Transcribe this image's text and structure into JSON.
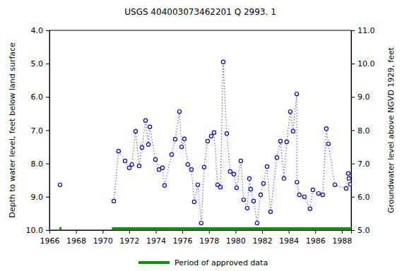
{
  "chart_data": {
    "type": "line",
    "title": "USGS 404003073462201 Q  2993. 1",
    "y_label": "Depth to water level, feet below land surface",
    "y2_label": "Groundwater level above NGVD 1929, feet",
    "xlim": [
      1966,
      1988.7
    ],
    "xticks": [
      1966,
      1968,
      1970,
      1972,
      1974,
      1976,
      1978,
      1980,
      1982,
      1984,
      1986,
      1988
    ],
    "ylim": [
      10.0,
      4.0
    ],
    "yticks": [
      {
        "value": 4,
        "label": "4.0"
      },
      {
        "value": 5,
        "label": "5.0"
      },
      {
        "value": 6,
        "label": "6.0"
      },
      {
        "value": 7,
        "label": "7.0"
      },
      {
        "value": 8,
        "label": "8.0"
      },
      {
        "value": 9,
        "label": "9.0"
      },
      {
        "value": 10,
        "label": "10.0"
      }
    ],
    "y2lim": [
      5.0,
      11.0
    ],
    "y2ticks": [
      {
        "value": 11,
        "label": "11.0"
      },
      {
        "value": 10,
        "label": "10.0"
      },
      {
        "value": 9,
        "label": "9.0"
      },
      {
        "value": 8,
        "label": "8.0"
      },
      {
        "value": 7,
        "label": "7.0"
      },
      {
        "value": 6,
        "label": "6.0"
      },
      {
        "value": 5,
        "label": "5.0"
      }
    ],
    "series": [
      {
        "color": "#0000ff",
        "marker": "circle",
        "line_style": "dotted",
        "x": [
          1966.8
        ],
        "values": [
          8.64
        ]
      },
      {
        "color": "#0000ff",
        "marker": "circle",
        "line_style": "dotted",
        "x": [
          1970.84,
          1971.2,
          1971.69,
          1972.0,
          1972.2,
          1972.48,
          1972.75,
          1972.96,
          1973.23,
          1973.44,
          1973.55,
          1973.97,
          1974.24,
          1974.5,
          1974.66,
          1975.19,
          1975.46,
          1975.78,
          1975.94,
          1976.15,
          1976.41,
          1976.68,
          1976.89,
          1977.16,
          1977.42,
          1977.64,
          1977.9,
          1978.17,
          1978.38,
          1978.65,
          1978.86,
          1979.07,
          1979.34,
          1979.6,
          1979.87,
          1980.08,
          1980.4,
          1980.61,
          1980.88,
          1981.04,
          1981.14,
          1981.36,
          1981.62,
          1981.89,
          1982.1,
          1982.37,
          1982.63,
          1983.11,
          1983.38,
          1983.64,
          1983.85,
          1984.12,
          1984.33,
          1984.6,
          1984.62,
          1984.8,
          1985.18,
          1985.6,
          1985.82,
          1986.24,
          1986.56,
          1986.83,
          1986.99,
          1987.47,
          1988.32,
          1988.48,
          1988.53,
          1988.64
        ],
        "values": [
          9.13,
          7.63,
          7.92,
          8.13,
          8.03,
          7.03,
          8.07,
          7.52,
          6.71,
          7.43,
          6.9,
          7.88,
          8.18,
          8.13,
          8.66,
          7.73,
          7.27,
          6.44,
          7.5,
          7.26,
          8.03,
          8.18,
          9.15,
          8.64,
          9.79,
          8.11,
          7.33,
          7.18,
          7.07,
          8.64,
          8.71,
          4.95,
          7.1,
          8.24,
          8.32,
          8.73,
          7.92,
          9.09,
          9.34,
          8.45,
          8.77,
          9.13,
          9.79,
          8.94,
          8.6,
          8.09,
          9.45,
          7.82,
          7.33,
          8.45,
          7.35,
          6.44,
          7.03,
          5.91,
          8.56,
          8.94,
          9.0,
          9.36,
          8.79,
          8.9,
          8.94,
          6.95,
          7.41,
          8.64,
          8.75,
          8.3,
          8.45,
          8.62
        ]
      }
    ],
    "approved_periods": {
      "label": "Period of approved data",
      "color": "#009900",
      "ranges": [
        [
          1966.75,
          1966.9
        ],
        [
          1970.7,
          1988.7
        ]
      ]
    }
  }
}
